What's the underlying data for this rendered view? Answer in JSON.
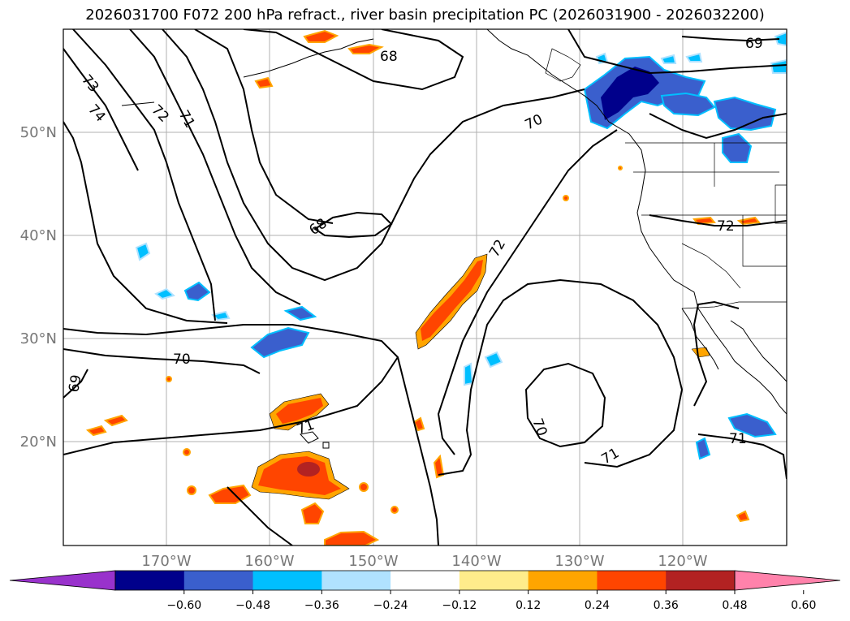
{
  "title": "2026031700 F072 200 hPa refract., river basin precipitation PC (2026031900 - 2026032200)",
  "axes": {
    "lat_labels": [
      "50°N",
      "40°N",
      "30°N",
      "20°N"
    ],
    "lon_labels": [
      "170°W",
      "160°W",
      "150°W",
      "140°W",
      "130°W",
      "120°W"
    ]
  },
  "contour_labels": [
    "73",
    "74",
    "72",
    "71",
    "68",
    "70",
    "69",
    "68",
    "72",
    "70",
    "69",
    "71",
    "70",
    "71",
    "71",
    "72"
  ],
  "colorbar": {
    "ticks": [
      "−0.60",
      "−0.48",
      "−0.36",
      "−0.24",
      "−0.12",
      "0.12",
      "0.24",
      "0.36",
      "0.48",
      "0.60"
    ],
    "colors": [
      "#9932cc",
      "#00008b",
      "#3a5fcd",
      "#00bfff",
      "#b0e2ff",
      "#ffffff",
      "#ffec8b",
      "#ffa500",
      "#ff4500",
      "#b22222",
      "#ff82ab"
    ]
  },
  "chart_data": {
    "type": "map",
    "title": "2026031700 F072 200 hPa refract., river basin precipitation PC (2026031900 - 2026032200)",
    "contour_field": "200 hPa refractivity",
    "contour_levels": [
      68,
      69,
      70,
      71,
      72,
      73,
      74
    ],
    "shaded_field": "river basin precipitation PC",
    "shade_levels": [
      -0.6,
      -0.48,
      -0.36,
      -0.24,
      -0.12,
      0.12,
      0.24,
      0.36,
      0.48,
      0.6
    ],
    "lat_range": [
      10,
      60
    ],
    "lon_range": [
      -180,
      -110
    ]
  }
}
